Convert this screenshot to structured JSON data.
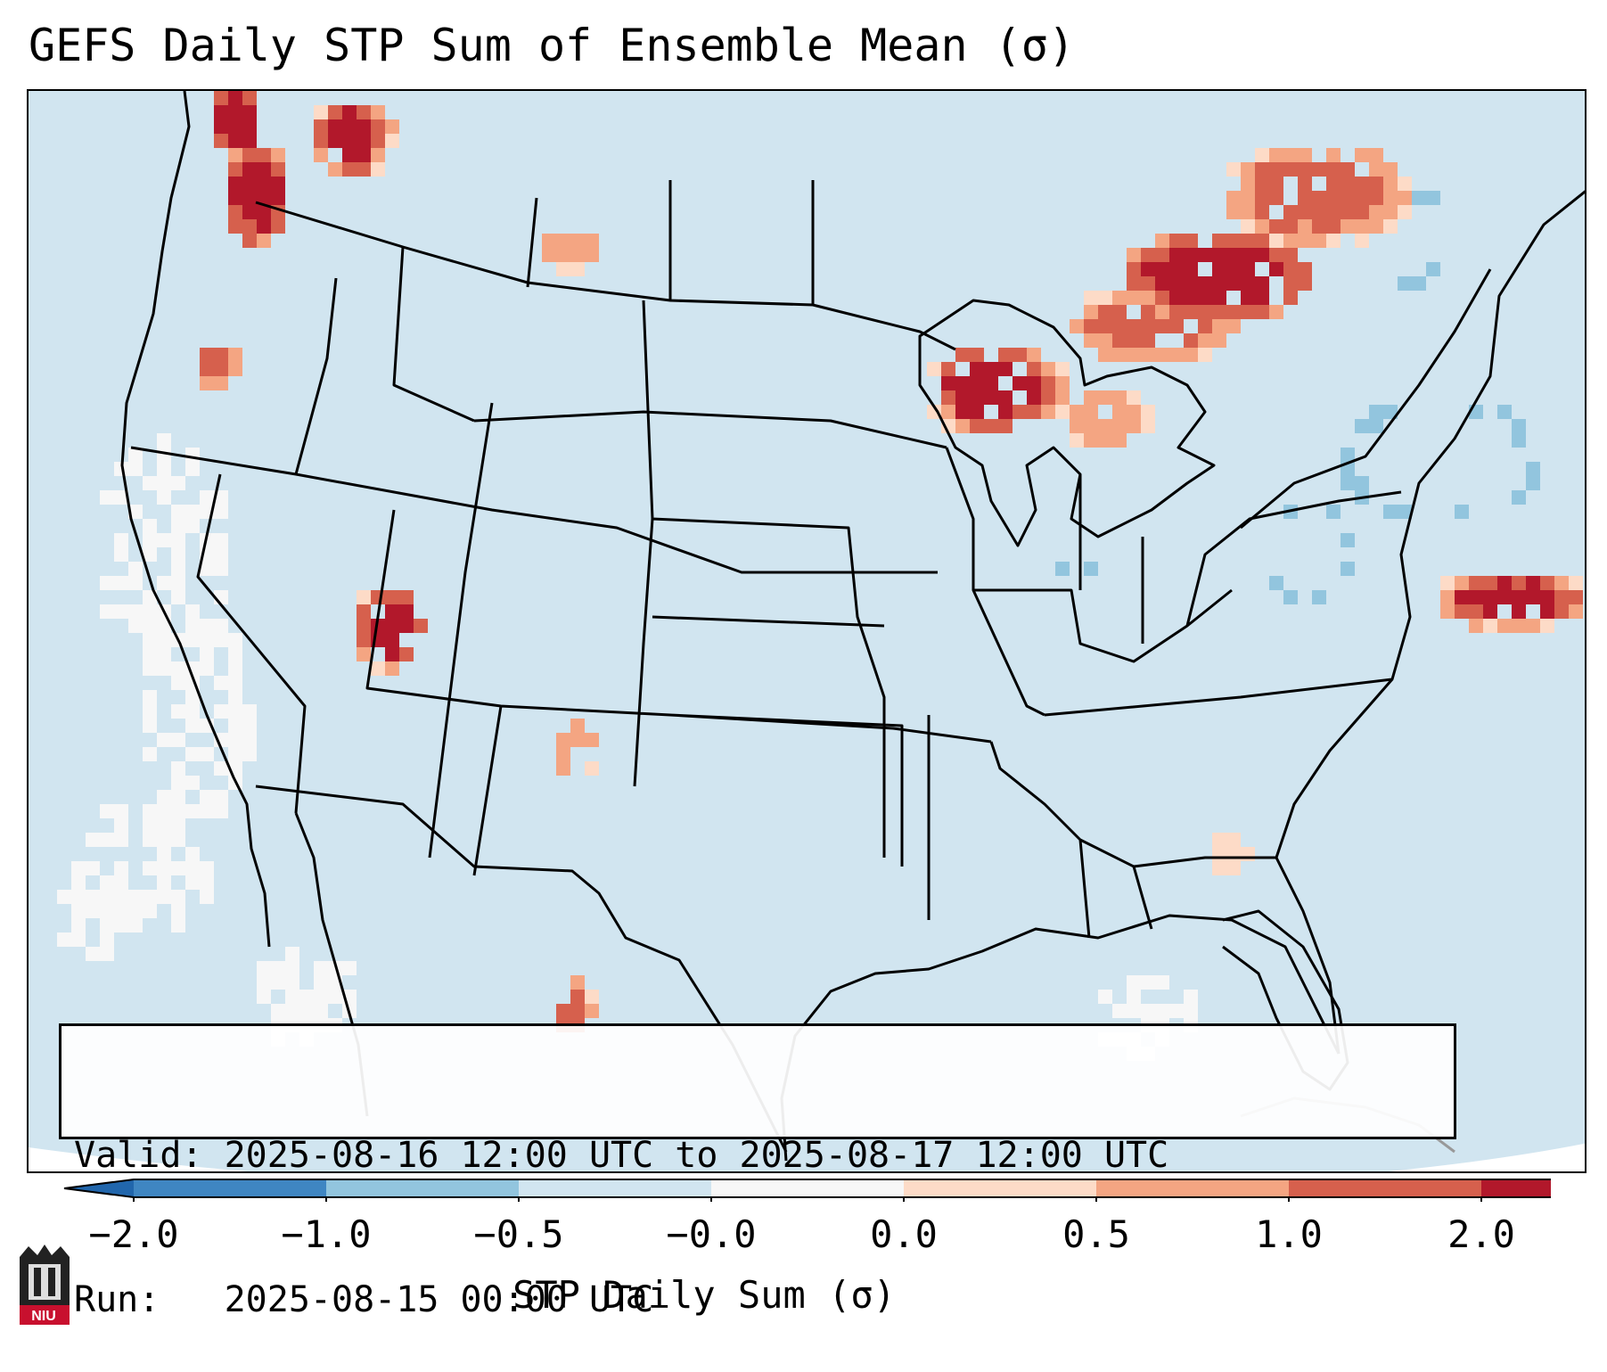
{
  "title": "GEFS Daily STP Sum of Ensemble Mean (σ)",
  "info": {
    "valid_line": "Valid: 2025-08-16 12:00 UTC to 2025-08-17 12:00 UTC",
    "run_line": "Run:   2025-08-15 00:00 UTC"
  },
  "colorbar": {
    "label": "STP Daily Sum (σ)",
    "ticks": [
      "−2.0",
      "−1.0",
      "−0.5",
      "−0.0",
      "0.0",
      "0.5",
      "1.0",
      "2.0"
    ],
    "colors": [
      "#3f86c2",
      "#92c5de",
      "#d1e5f0",
      "#f7f7f7",
      "#fddbc7",
      "#f4a582",
      "#d6604d",
      "#b2182b"
    ],
    "under_color": "#2166ac",
    "over_color": "#b2182b"
  },
  "logo": {
    "text": "NIU"
  },
  "chart_data": {
    "type": "heatmap",
    "title": "GEFS Daily STP Sum of Ensemble Mean (σ)",
    "colorbar_label": "STP Daily Sum (σ)",
    "levels": [
      -2.0,
      -1.0,
      -0.5,
      -0.0,
      0.0,
      0.5,
      1.0,
      2.0
    ],
    "background_value_range": [
      -0.5,
      -0.0
    ]
  },
  "colors": {
    "background_field": "#d1e5f0",
    "neutral": "#f7f7f7",
    "boundary": "#000000"
  }
}
